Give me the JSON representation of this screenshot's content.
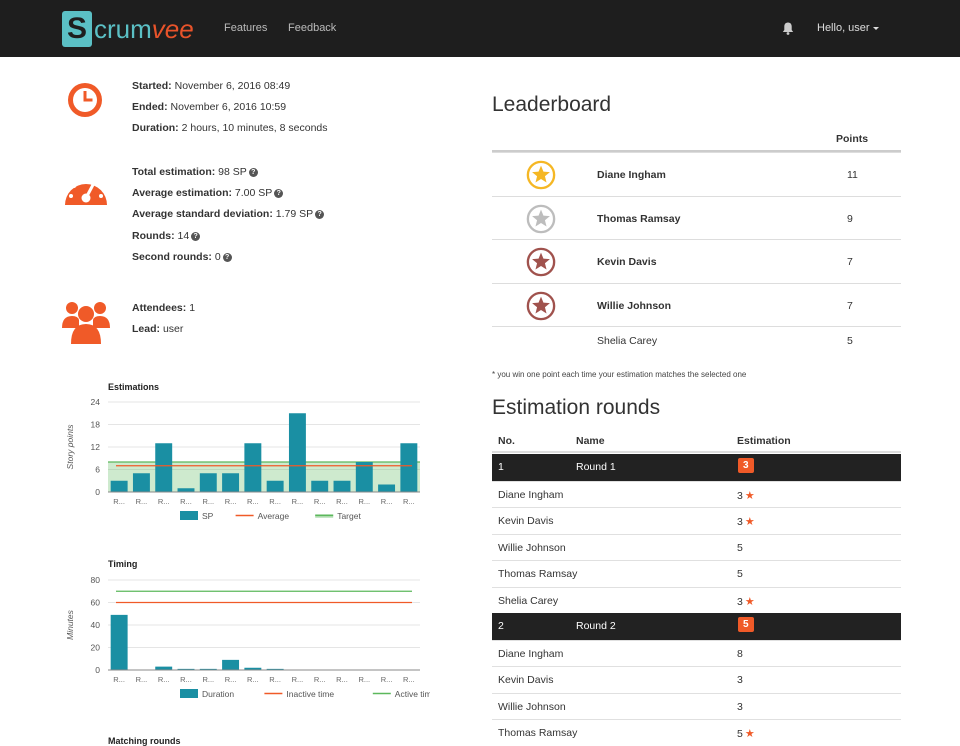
{
  "navbar": {
    "logo_letter": "S",
    "logo_main": "crum",
    "logo_accent": "vee",
    "links": [
      "Features",
      "Feedback"
    ],
    "user_label": "Hello, user"
  },
  "session": {
    "started_label": "Started:",
    "started": "November 6, 2016 08:49",
    "ended_label": "Ended:",
    "ended": "November 6, 2016 10:59",
    "duration_label": "Duration:",
    "duration": "2 hours, 10 minutes, 8 seconds"
  },
  "estimation_stats": {
    "total_label": "Total estimation:",
    "total": "98 SP",
    "average_label": "Average estimation:",
    "average": "7.00 SP",
    "std_label": "Average standard deviation:",
    "std": "1.79 SP",
    "rounds_label": "Rounds:",
    "rounds": "14",
    "second_label": "Second rounds:",
    "second": "0"
  },
  "team": {
    "attendees_label": "Attendees:",
    "attendees": "1",
    "lead_label": "Lead:",
    "lead": "user"
  },
  "charts": {
    "estimations_title": "Estimations",
    "timing_title": "Timing",
    "matching_title": "Matching rounds"
  },
  "chart_data": [
    {
      "type": "bar",
      "title": "Estimations",
      "ylabel": "Story points",
      "categories": [
        "R...",
        "R...",
        "R...",
        "R...",
        "R...",
        "R...",
        "R...",
        "R...",
        "R...",
        "R...",
        "R...",
        "R...",
        "R...",
        "R..."
      ],
      "ylim": [
        0,
        24
      ],
      "yticks": [
        0,
        6,
        12,
        18,
        24
      ],
      "series": [
        {
          "name": "SP",
          "kind": "bar",
          "color": "#1a8fa3",
          "values": [
            3,
            5,
            13,
            1,
            5,
            5,
            13,
            3,
            21,
            3,
            3,
            8,
            2,
            13
          ]
        },
        {
          "name": "Average",
          "kind": "line",
          "color": "#f05a28",
          "values": [
            7,
            7,
            7,
            7,
            7,
            7,
            7,
            7,
            7,
            7,
            7,
            7,
            7,
            7
          ]
        },
        {
          "name": "Target",
          "kind": "band",
          "color": "#5cb85c",
          "values": [
            8,
            8,
            8,
            8,
            8,
            8,
            8,
            8,
            8,
            8,
            8,
            8,
            8,
            8
          ]
        }
      ],
      "grid": true,
      "legend": "bottom"
    },
    {
      "type": "bar",
      "title": "Timing",
      "ylabel": "Minutes",
      "categories": [
        "R...",
        "R...",
        "R...",
        "R...",
        "R...",
        "R...",
        "R...",
        "R...",
        "R...",
        "R...",
        "R...",
        "R...",
        "R...",
        "R..."
      ],
      "ylim": [
        0,
        80
      ],
      "yticks": [
        0,
        20,
        40,
        60,
        80
      ],
      "series": [
        {
          "name": "Duration",
          "kind": "bar",
          "color": "#1a8fa3",
          "values": [
            49,
            0,
            3,
            1,
            1,
            9,
            2,
            1,
            0,
            0,
            0,
            0,
            0,
            0
          ]
        },
        {
          "name": "Inactive time",
          "kind": "line",
          "color": "#f05a28",
          "values": [
            60,
            60,
            60,
            60,
            60,
            60,
            60,
            60,
            60,
            60,
            60,
            60,
            60,
            60
          ]
        },
        {
          "name": "Active time",
          "kind": "line",
          "color": "#5cb85c",
          "values": [
            70,
            70,
            70,
            70,
            70,
            70,
            70,
            70,
            70,
            70,
            70,
            70,
            70,
            70
          ]
        }
      ],
      "grid": true,
      "legend": "bottom"
    }
  ],
  "leaderboard": {
    "title": "Leaderboard",
    "points_header": "Points",
    "rows": [
      {
        "name": "Diane Ingham",
        "points": "11",
        "medal": "gold"
      },
      {
        "name": "Thomas Ramsay",
        "points": "9",
        "medal": "silver"
      },
      {
        "name": "Kevin Davis",
        "points": "7",
        "medal": "bronze"
      },
      {
        "name": "Willie Johnson",
        "points": "7",
        "medal": "bronze"
      },
      {
        "name": "Shelia Carey",
        "points": "5",
        "medal": ""
      }
    ],
    "note": "* you win one point each time your estimation matches the selected one"
  },
  "rounds": {
    "title": "Estimation rounds",
    "headers": {
      "no": "No.",
      "name": "Name",
      "estimation": "Estimation"
    },
    "items": [
      {
        "no": "1",
        "name": "Round 1",
        "estimation": "3",
        "votes": [
          {
            "name": "Diane Ingham",
            "value": "3",
            "match": true
          },
          {
            "name": "Kevin Davis",
            "value": "3",
            "match": true
          },
          {
            "name": "Willie Johnson",
            "value": "5",
            "match": false
          },
          {
            "name": "Thomas Ramsay",
            "value": "5",
            "match": false
          },
          {
            "name": "Shelia Carey",
            "value": "3",
            "match": true
          }
        ]
      },
      {
        "no": "2",
        "name": "Round 2",
        "estimation": "5",
        "votes": [
          {
            "name": "Diane Ingham",
            "value": "8",
            "match": false
          },
          {
            "name": "Kevin Davis",
            "value": "3",
            "match": false
          },
          {
            "name": "Willie Johnson",
            "value": "3",
            "match": false
          },
          {
            "name": "Thomas Ramsay",
            "value": "5",
            "match": true
          }
        ]
      }
    ]
  },
  "colors": {
    "accent": "#f05a28",
    "teal": "#1a8fa3",
    "navbar": "#1e1e1e",
    "green": "#5cb85c"
  }
}
